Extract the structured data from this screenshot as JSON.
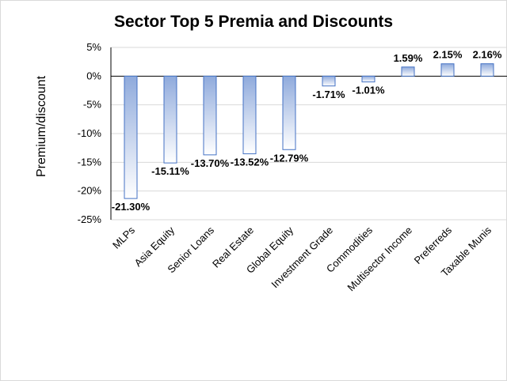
{
  "chart_data": {
    "type": "bar",
    "title": "Sector Top 5 Premia and Discounts",
    "xlabel": "",
    "ylabel": "Premium/discount",
    "categories": [
      "MLPs",
      "Asia Equity",
      "Senior Loans",
      "Real Estate",
      "Global Equity",
      "Investment Grade",
      "Commodities",
      "Multisector Income",
      "Preferreds",
      "Taxable Munis"
    ],
    "values": [
      -21.3,
      -15.11,
      -13.7,
      -13.52,
      -12.79,
      -1.71,
      -1.01,
      1.59,
      2.15,
      2.16
    ],
    "data_labels": [
      "-21.30%",
      "-15.11%",
      "-13.70%",
      "-13.52%",
      "-12.79%",
      "-1.71%",
      "-1.01%",
      "1.59%",
      "2.15%",
      "2.16%"
    ],
    "ylim": [
      -25,
      5
    ],
    "yticks": [
      5,
      0,
      -5,
      -10,
      -15,
      -20,
      -25
    ],
    "ytick_labels": [
      "5%",
      "0%",
      "-5%",
      "-10%",
      "-15%",
      "-20%",
      "-25%"
    ],
    "grid": true,
    "legend": "none",
    "colors": {
      "bar_edge": "#4472c4",
      "bar_fill_dark": "#8faadc",
      "bar_fill_light": "#ffffff",
      "grid": "#d9d9d9"
    }
  }
}
